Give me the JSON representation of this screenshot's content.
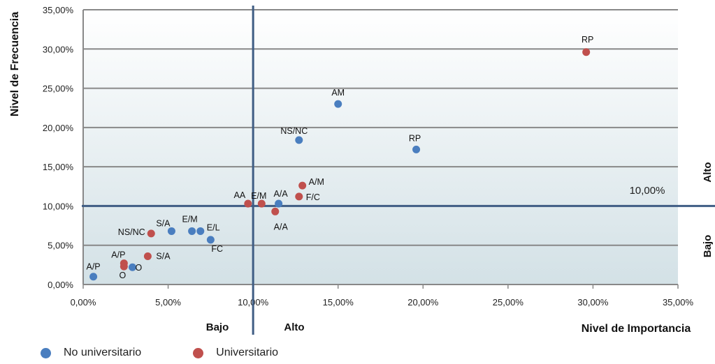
{
  "chart_data": {
    "type": "scatter",
    "xlabel": "Nivel de Importancia",
    "ylabel": "Nivel de Frecuencia",
    "xlim": [
      0,
      35
    ],
    "ylim": [
      0,
      35
    ],
    "x_ticks": [
      "0,00%",
      "5,00%",
      "10,00%",
      "15,00%",
      "20,00%",
      "25,00%",
      "30,00%",
      "35,00%"
    ],
    "y_ticks": [
      "0,00%",
      "5,00%",
      "10,00%",
      "15,00%",
      "20,00%",
      "25,00%",
      "30,00%",
      "35,00%"
    ],
    "threshold_x": 10,
    "threshold_y": 10,
    "threshold_label": "10,00%",
    "zone_labels": {
      "x_low": "Bajo",
      "x_high": "Alto",
      "y_low": "Bajo",
      "y_high": "Alto"
    },
    "grid": true,
    "legend_position": "bottom-left",
    "series": [
      {
        "name": "No universitario",
        "color": "#4a7ebf",
        "points": [
          {
            "label": "AM",
            "x": 15.0,
            "y": 23.0
          },
          {
            "label": "RP",
            "x": 19.6,
            "y": 17.2
          },
          {
            "label": "NS/NC",
            "x": 12.7,
            "y": 18.4
          },
          {
            "label": "A/A",
            "x": 11.5,
            "y": 10.3
          },
          {
            "label": "S/A",
            "x": 5.2,
            "y": 6.8
          },
          {
            "label": "E/M",
            "x": 6.4,
            "y": 6.8
          },
          {
            "label": "E/L",
            "x": 6.9,
            "y": 6.8
          },
          {
            "label": "FC",
            "x": 7.5,
            "y": 5.7
          },
          {
            "label": "O",
            "x": 2.9,
            "y": 2.2
          },
          {
            "label": "A/P",
            "x": 0.6,
            "y": 1.0
          }
        ]
      },
      {
        "name": "Universitario",
        "color": "#c0504d",
        "points": [
          {
            "label": "RP",
            "x": 29.6,
            "y": 29.6
          },
          {
            "label": "A/M",
            "x": 12.9,
            "y": 12.6
          },
          {
            "label": "F/C",
            "x": 12.7,
            "y": 11.2
          },
          {
            "label": "A/A",
            "x": 11.3,
            "y": 9.3
          },
          {
            "label": "E/M",
            "x": 10.5,
            "y": 10.3
          },
          {
            "label": "AA",
            "x": 9.7,
            "y": 10.3
          },
          {
            "label": "NS/NC",
            "x": 4.0,
            "y": 6.5
          },
          {
            "label": "S/A",
            "x": 3.8,
            "y": 3.6
          },
          {
            "label": "A/P",
            "x": 2.4,
            "y": 2.7
          },
          {
            "label": "O",
            "x": 2.4,
            "y": 2.3
          }
        ]
      }
    ]
  }
}
